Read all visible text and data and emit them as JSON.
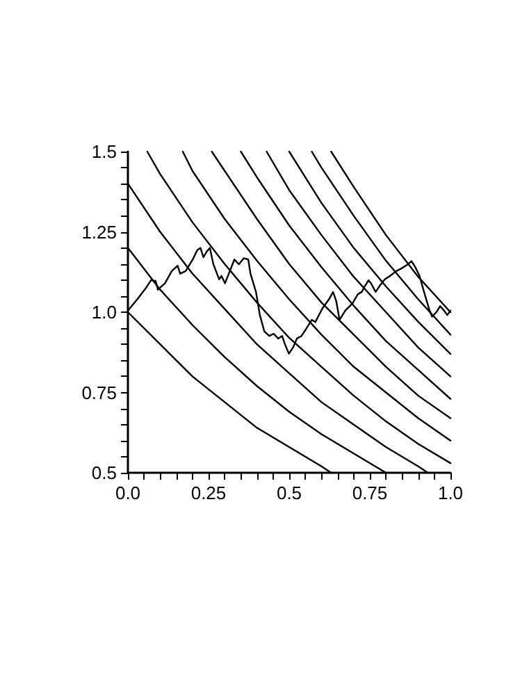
{
  "chart_data": {
    "type": "line",
    "marker": "none",
    "line_style": "solid",
    "xlim": [
      0,
      1
    ],
    "ylim": [
      0.5,
      1.5
    ],
    "xticks": [
      {
        "value": 0,
        "label": "0.0"
      },
      {
        "value": 0.05,
        "label": null
      },
      {
        "value": 0.1,
        "label": null
      },
      {
        "value": 0.15,
        "label": null
      },
      {
        "value": 0.2,
        "label": null
      },
      0.25,
      {
        "value": 0.3,
        "label": null
      },
      {
        "value": 0.35,
        "label": null
      },
      {
        "value": 0.4,
        "label": null
      },
      {
        "value": 0.45,
        "label": null
      },
      0.5,
      {
        "value": 0.55,
        "label": null
      },
      {
        "value": 0.6,
        "label": null
      },
      {
        "value": 0.65,
        "label": null
      },
      {
        "value": 0.7,
        "label": null
      },
      0.75,
      {
        "value": 0.8,
        "label": null
      },
      {
        "value": 0.85,
        "label": null
      },
      {
        "value": 0.9,
        "label": null
      },
      {
        "value": 0.95,
        "label": null
      },
      {
        "value": 1,
        "label": "1.0"
      }
    ],
    "yticks": [
      0.5,
      {
        "value": 0.55,
        "label": null
      },
      {
        "value": 0.6,
        "label": null
      },
      {
        "value": 0.65,
        "label": null
      },
      {
        "value": 0.7,
        "label": null
      },
      0.75,
      {
        "value": 0.8,
        "label": null
      },
      {
        "value": 0.85,
        "label": null
      },
      {
        "value": 0.9,
        "label": null
      },
      {
        "value": 0.95,
        "label": null
      },
      {
        "value": 1,
        "label": "1.0"
      },
      {
        "value": 1.05,
        "label": null
      },
      {
        "value": 1.1,
        "label": null
      },
      {
        "value": 1.15,
        "label": null
      },
      {
        "value": 1.2,
        "label": null
      },
      1.25,
      {
        "value": 1.3,
        "label": null
      },
      {
        "value": 1.35,
        "label": null
      },
      {
        "value": 1.4,
        "label": null
      },
      {
        "value": 1.45,
        "label": null
      },
      1.5
    ],
    "series": [
      {
        "color": "#000000",
        "x": [
          0,
          0.1,
          0.2,
          0.3,
          0.4,
          0.5,
          0.6,
          0.63
        ],
        "values": [
          1,
          0.9,
          0.8,
          0.72,
          0.64,
          0.58,
          0.52,
          0.5
        ]
      },
      {
        "color": "#000000",
        "x": [
          0,
          0.1,
          0.2,
          0.3,
          0.4,
          0.5,
          0.6,
          0.7,
          0.8
        ],
        "values": [
          1.2,
          1.07,
          0.96,
          0.86,
          0.77,
          0.69,
          0.62,
          0.56,
          0.5
        ]
      },
      {
        "color": "#000000",
        "x": [
          0,
          0.1,
          0.2,
          0.3,
          0.4,
          0.5,
          0.6,
          0.7,
          0.8,
          0.9,
          0.93
        ],
        "values": [
          1.4,
          1.25,
          1.12,
          1.01,
          0.9,
          0.81,
          0.72,
          0.65,
          0.58,
          0.52,
          0.5
        ]
      },
      {
        "color": "#000000",
        "x": [
          0.06,
          0.1,
          0.2,
          0.3,
          0.4,
          0.5,
          0.6,
          0.7,
          0.8,
          0.9,
          1
        ],
        "values": [
          1.5,
          1.43,
          1.28,
          1.15,
          1.03,
          0.92,
          0.83,
          0.74,
          0.66,
          0.59,
          0.53
        ]
      },
      {
        "color": "#000000",
        "x": [
          0.17,
          0.2,
          0.3,
          0.4,
          0.5,
          0.6,
          0.7,
          0.8,
          0.9,
          1
        ],
        "values": [
          1.5,
          1.44,
          1.29,
          1.16,
          1.04,
          0.93,
          0.83,
          0.75,
          0.67,
          0.6
        ]
      },
      {
        "color": "#000000",
        "x": [
          0.26,
          0.3,
          0.4,
          0.5,
          0.6,
          0.7,
          0.8,
          0.9,
          1
        ],
        "values": [
          1.5,
          1.44,
          1.29,
          1.15,
          1.03,
          0.93,
          0.83,
          0.74,
          0.67
        ]
      },
      {
        "color": "#000000",
        "x": [
          0.35,
          0.4,
          0.5,
          0.6,
          0.7,
          0.8,
          0.9,
          1
        ],
        "values": [
          1.5,
          1.42,
          1.27,
          1.14,
          1.02,
          0.91,
          0.82,
          0.73
        ]
      },
      {
        "color": "#000000",
        "x": [
          0.43,
          0.5,
          0.6,
          0.7,
          0.8,
          0.9,
          1
        ],
        "values": [
          1.5,
          1.38,
          1.24,
          1.11,
          1,
          0.89,
          0.8
        ]
      },
      {
        "color": "#000000",
        "x": [
          0.5,
          0.6,
          0.7,
          0.8,
          0.9,
          1
        ],
        "values": [
          1.5,
          1.34,
          1.2,
          1.08,
          0.97,
          0.87
        ]
      },
      {
        "color": "#000000",
        "x": [
          0.57,
          0.6,
          0.7,
          0.8,
          0.9,
          1
        ],
        "values": [
          1.5,
          1.45,
          1.3,
          1.16,
          1.04,
          0.93
        ]
      },
      {
        "color": "#000000",
        "x": [
          0.63,
          0.7,
          0.8,
          0.9,
          1
        ],
        "values": [
          1.5,
          1.39,
          1.24,
          1.11,
          1
        ]
      },
      {
        "color": "#000000",
        "x": [
          0,
          0.029,
          0.057,
          0.072,
          0.086,
          0.093,
          0.115,
          0.136,
          0.154,
          0.162,
          0.179,
          0.201,
          0.215,
          0.225,
          0.234,
          0.244,
          0.254,
          0.265,
          0.283,
          0.29,
          0.301,
          0.316,
          0.33,
          0.344,
          0.359,
          0.373,
          0.38,
          0.397,
          0.409,
          0.423,
          0.438,
          0.452,
          0.466,
          0.478,
          0.488,
          0.499,
          0.512,
          0.524,
          0.538,
          0.552,
          0.57,
          0.581,
          0.603,
          0.624,
          0.636,
          0.646,
          0.656,
          0.674,
          0.696,
          0.713,
          0.725,
          0.732,
          0.746,
          0.753,
          0.768,
          0.782,
          0.796,
          0.813,
          0.832,
          0.846,
          0.868,
          0.879,
          0.89,
          0.904,
          0.918,
          0.933,
          0.943,
          0.957,
          0.968,
          0.98,
          0.99,
          1
        ],
        "values": [
          1.005,
          1.04,
          1.077,
          1.1,
          1.097,
          1.07,
          1.09,
          1.128,
          1.145,
          1.12,
          1.128,
          1.164,
          1.193,
          1.2,
          1.171,
          1.188,
          1.2,
          1.149,
          1.102,
          1.113,
          1.09,
          1.128,
          1.164,
          1.149,
          1.168,
          1.164,
          1.12,
          1.063,
          0.991,
          0.94,
          0.926,
          0.933,
          0.918,
          0.926,
          0.897,
          0.871,
          0.89,
          0.918,
          0.926,
          0.947,
          0.976,
          0.969,
          1.012,
          1.041,
          1.063,
          1.034,
          0.976,
          1.005,
          1.027,
          1.056,
          1.063,
          1.077,
          1.099,
          1.091,
          1.063,
          1.084,
          1.102,
          1.113,
          1.128,
          1.135,
          1.149,
          1.159,
          1.142,
          1.113,
          1.063,
          1.012,
          0.986,
          1.001,
          1.019,
          1.005,
          0.991,
          1.005
        ]
      }
    ]
  }
}
